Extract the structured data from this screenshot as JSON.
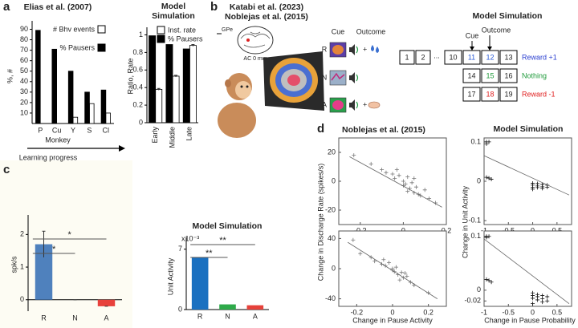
{
  "panel_labels": [
    "a",
    "b",
    "c",
    "d"
  ],
  "diagram": {
    "title_lines": [
      "Katabi et al. (2023)",
      "Noblejas et al. (2015)"
    ],
    "gpe": "GPe",
    "section": "AC 0 mm",
    "columns": [
      "Cue",
      "Outcome"
    ],
    "trials": [
      "R",
      "N",
      "A"
    ],
    "model_title": "Model Simulation",
    "sequence_rows": [
      [
        "1",
        "2",
        "...",
        "10",
        "11",
        "12",
        "13"
      ],
      [
        "14",
        "15",
        "16"
      ],
      [
        "17",
        "18",
        "19"
      ]
    ],
    "outcomes": [
      "Reward +1",
      "Nothing",
      "Reward -1"
    ],
    "arrows": [
      "Cue",
      "Outcome"
    ]
  },
  "chart_data": [
    {
      "type": "bar",
      "title": "Elias et al. (2007)",
      "categories": [
        "P",
        "Cu",
        "Y",
        "S",
        "Cl"
      ],
      "series": [
        {
          "name": "# Bhv events",
          "color": "#ffffff",
          "values": [
            0,
            0,
            6,
            19,
            10
          ]
        },
        {
          "name": "% Pausers",
          "color": "#000000",
          "values": [
            89,
            71,
            50,
            30,
            32
          ]
        }
      ],
      "ylabel": "%, #",
      "xlabel": "Monkey",
      "annotation": "Learning progress",
      "ylim": [
        0,
        95
      ],
      "yticks": [
        10,
        20,
        30,
        40,
        50,
        60,
        70,
        80,
        90
      ]
    },
    {
      "type": "bar",
      "title": "Model Simulation",
      "categories": [
        "Early",
        "Middle",
        "Late"
      ],
      "series": [
        {
          "name": "Inst. rate",
          "color": "#ffffff",
          "values": [
            0.38,
            0.53,
            0.88
          ],
          "errors": [
            0.01,
            0.01,
            0.01
          ]
        },
        {
          "name": "% Pausers",
          "color": "#000000",
          "values": [
            0.99,
            0.89,
            0.84
          ]
        }
      ],
      "ylabel": "Ratio, Rate",
      "ylim": [
        0,
        1.05
      ],
      "yticks": [
        0,
        0.2,
        0.4,
        0.6,
        0.8,
        1
      ]
    },
    {
      "type": "bar",
      "categories": [
        "R",
        "N",
        "A"
      ],
      "values": [
        1.7,
        0,
        -0.2
      ],
      "errors": [
        0.4,
        0,
        0
      ],
      "colors": [
        "#4f81bd",
        "#9bbb59",
        "#e8413c"
      ],
      "ylabel": "spk/s",
      "ylim": [
        -0.35,
        2.5
      ],
      "yticks": [
        0,
        1,
        2
      ],
      "significance": [
        "*",
        "*"
      ]
    },
    {
      "type": "bar",
      "title": "Model Simulation",
      "categories": [
        "R",
        "N",
        "A"
      ],
      "values": [
        6,
        0.6,
        0.5
      ],
      "colors": [
        "#1a70c0",
        "#2eaa4a",
        "#e6413a"
      ],
      "ylabel": "Unit Activity",
      "y_multiplier": "x10⁻³",
      "ylim": [
        0,
        8
      ],
      "yticks": [
        0,
        7
      ],
      "significance": [
        "**",
        "**"
      ]
    },
    {
      "type": "scatter",
      "title": "Noblejas et al. (2015)",
      "ylabel": "Change in Discharge Rate (spikes/s)",
      "color": "#777777",
      "x": [
        -0.23,
        -0.15,
        -0.1,
        -0.08,
        -0.05,
        -0.04,
        -0.02,
        0,
        0.01,
        0.02,
        0.03,
        0.04,
        0.05,
        0.06,
        0.08,
        0.1,
        0.12,
        0.15,
        -0.03,
        0,
        0.02,
        0.05,
        0.07
      ],
      "y": [
        18,
        12,
        8,
        6,
        5,
        2,
        4,
        0,
        -2,
        3,
        -5,
        -1,
        -8,
        -4,
        -10,
        -6,
        -12,
        -15,
        8,
        -3,
        -7,
        2,
        -9
      ],
      "fit": {
        "x": [
          -0.25,
          0.18
        ],
        "y": [
          17,
          -18
        ]
      },
      "xlim": [
        -0.3,
        0.2
      ],
      "xticks": [
        -0.2,
        0,
        0.2
      ],
      "ylim": [
        -30,
        30
      ],
      "yticks": [
        -20,
        0,
        20
      ]
    },
    {
      "type": "scatter",
      "xlabel": "Change in Pause Activity",
      "color": "#777777",
      "x": [
        -0.22,
        -0.18,
        -0.12,
        -0.1,
        -0.06,
        -0.04,
        -0.02,
        0,
        0.01,
        0.02,
        0.03,
        0.05,
        0.06,
        0.08,
        0.1,
        0.12,
        0.2,
        -0.05,
        0,
        0.04,
        0.07
      ],
      "y": [
        38,
        20,
        15,
        10,
        6,
        4,
        8,
        0,
        -4,
        2,
        -8,
        -5,
        -12,
        -10,
        -18,
        -22,
        -32,
        12,
        -2,
        -15,
        -6
      ],
      "fit": {
        "x": [
          -0.25,
          0.25
        ],
        "y": [
          35,
          -40
        ]
      },
      "xlim": [
        -0.3,
        0.3
      ],
      "xticks": [
        -0.2,
        0,
        0.2
      ],
      "ylim": [
        -50,
        50
      ],
      "yticks": [
        -40,
        0,
        40
      ]
    },
    {
      "type": "scatter",
      "title": "Model Simulation",
      "ylabel": "Change in Unit Activity",
      "color": "#111111",
      "x": [
        -0.95,
        -0.95,
        -0.9,
        -0.95,
        -0.9,
        -0.85,
        0,
        0,
        0,
        0.1,
        0.1,
        0.1,
        0.2,
        0.2,
        0.3,
        0.3,
        0,
        0.2
      ],
      "y": [
        0.1,
        0.095,
        0.1,
        0.01,
        0.008,
        0.005,
        -0.005,
        -0.01,
        -0.015,
        -0.006,
        -0.012,
        -0.016,
        -0.008,
        -0.014,
        -0.01,
        -0.015,
        -0.02,
        -0.018
      ],
      "fit": {
        "x": [
          -1,
          0.75
        ],
        "y": [
          0.065,
          -0.035
        ]
      },
      "xlim": [
        -1,
        0.8
      ],
      "xticks": [
        -1,
        -0.5,
        0,
        0.5
      ],
      "ylim": [
        -0.11,
        0.11
      ],
      "yticks": [
        -0.1,
        0,
        0.1
      ]
    },
    {
      "type": "scatter",
      "xlabel": "Change in Pause Probability",
      "color": "#111111",
      "x": [
        -0.95,
        -0.95,
        -0.9,
        -0.95,
        -0.9,
        -0.85,
        0,
        0,
        0,
        0.1,
        0.1,
        0.1,
        0.2,
        0.2,
        0.3,
        0.3,
        0,
        0.2
      ],
      "y": [
        0.1,
        0.098,
        0.1,
        0.02,
        0.018,
        0.015,
        -0.005,
        -0.01,
        -0.015,
        -0.008,
        -0.012,
        -0.018,
        -0.01,
        -0.016,
        -0.012,
        -0.02,
        -0.025,
        -0.022
      ],
      "fit": {
        "x": [
          -1,
          0.75
        ],
        "y": [
          0.095,
          -0.025
        ]
      },
      "xlim": [
        -1,
        0.8
      ],
      "xticks": [
        -1,
        -0.5,
        0,
        0.5
      ],
      "ylim": [
        -0.03,
        0.11
      ],
      "yticks": [
        -0.02,
        0,
        0.1
      ]
    }
  ]
}
